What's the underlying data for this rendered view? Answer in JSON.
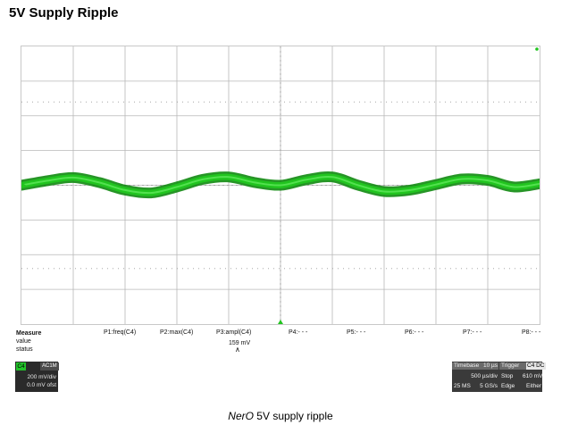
{
  "page": {
    "title": "5V Supply Ripple"
  },
  "colors": {
    "trace": "#21c41f",
    "trace_dark": "#0f8a10",
    "grid": "#b8b8b8",
    "channel_tag": "#22c32a"
  },
  "measure": {
    "header": "Measure",
    "row_value": "value",
    "row_status": "status",
    "params": [
      {
        "label": "P1:freq(C4)",
        "value": ""
      },
      {
        "label": "P2:max(C4)",
        "value": ""
      },
      {
        "label": "P3:ampl(C4)",
        "value": "159 mV",
        "status": "∧"
      },
      {
        "label": "P4:- - -",
        "value": ""
      },
      {
        "label": "P5:- - -",
        "value": ""
      },
      {
        "label": "P6:- - -",
        "value": ""
      },
      {
        "label": "P7:- - -",
        "value": ""
      },
      {
        "label": "P8:- - -",
        "value": ""
      }
    ]
  },
  "channel": {
    "tag": "C4",
    "coupling": "AC1M",
    "vdiv": "200 mV/div",
    "offset": "0.0 mV ofst"
  },
  "timebase": {
    "label": "Timebase",
    "value": "10 µs",
    "per_div": "500 µs/div",
    "samples": "25 MS",
    "rate": "5 GS/s",
    "trigger_label": "Trigger",
    "trigger_tag": "C4 DC",
    "stop": "Stop",
    "level": "610 mV",
    "edge": "Edge",
    "slope": "Either"
  },
  "caption": {
    "brand": "NerO",
    "text": " 5V supply ripple"
  },
  "chart_data": {
    "type": "line",
    "title": "5V Supply Ripple",
    "xlabel": "",
    "ylabel": "",
    "grid": true,
    "x_divisions": 10,
    "y_divisions": 8,
    "series": [
      {
        "x": [
          0,
          0.5,
          1,
          1.5,
          2,
          2.5,
          3,
          3.5,
          4,
          4.5,
          5,
          5.5,
          6,
          6.5,
          7,
          7.5,
          8,
          8.5,
          9,
          9.5,
          10
        ],
        "y": [
          0.0,
          0.13,
          0.22,
          0.08,
          -0.14,
          -0.22,
          -0.05,
          0.17,
          0.24,
          0.08,
          0.0,
          0.16,
          0.24,
          0.0,
          -0.18,
          -0.14,
          0.02,
          0.18,
          0.14,
          -0.05,
          0.04
        ]
      }
    ]
  }
}
